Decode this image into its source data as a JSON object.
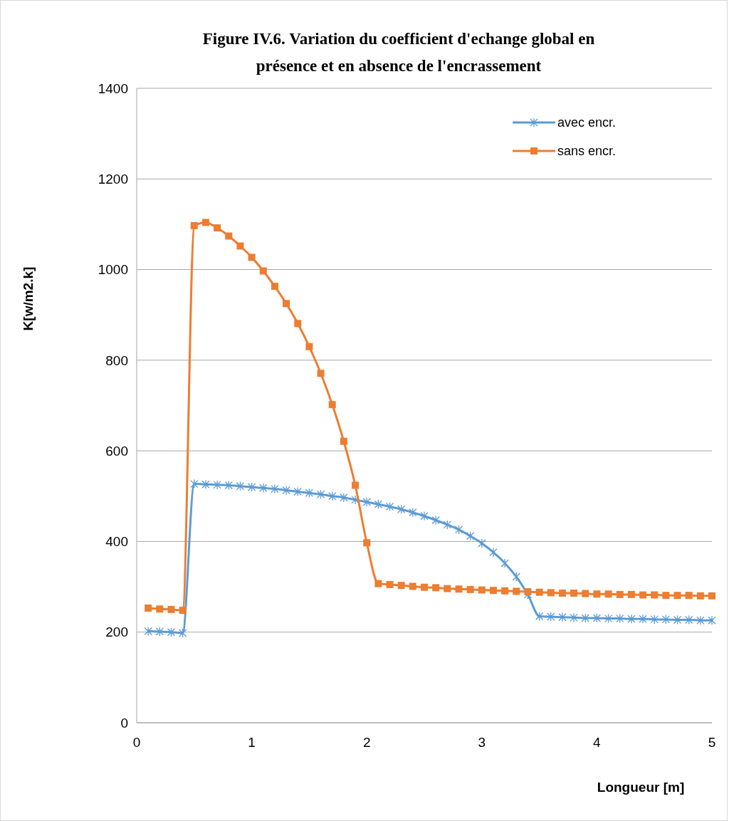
{
  "chart_data": {
    "type": "line",
    "title": "Figure IV.6. Variation du coefficient d'echange global en présence et en absence de l'encrassement",
    "xlabel": "Longueur [m]",
    "ylabel": "K[w/m2.k]",
    "x": [
      0.1,
      0.2,
      0.3,
      0.4,
      0.5,
      0.6,
      0.7,
      0.8,
      0.9,
      1.0,
      1.1,
      1.2,
      1.3,
      1.4,
      1.5,
      1.6,
      1.7,
      1.8,
      1.9,
      2.0,
      2.1,
      2.2,
      2.3,
      2.4,
      2.5,
      2.6,
      2.7,
      2.8,
      2.9,
      3.0,
      3.1,
      3.2,
      3.3,
      3.4,
      3.5,
      3.6,
      3.7,
      3.8,
      3.9,
      4.0,
      4.1,
      4.2,
      4.3,
      4.4,
      4.5,
      4.6,
      4.7,
      4.8,
      4.9,
      5.0
    ],
    "series": [
      {
        "name": "avec encr.",
        "color": "#5b9bd5",
        "marker": "cross",
        "values": [
          202,
          201,
          200,
          198,
          527,
          526,
          525,
          524,
          522,
          520,
          518,
          516,
          513,
          510,
          507,
          504,
          500,
          497,
          492,
          487,
          482,
          477,
          471,
          464,
          456,
          447,
          437,
          426,
          412,
          396,
          376,
          352,
          322,
          283,
          235,
          234,
          233,
          232,
          231,
          231,
          230,
          230,
          229,
          229,
          228,
          228,
          227,
          227,
          226,
          226
        ]
      },
      {
        "name": "sans encr.",
        "color": "#ed7d31",
        "marker": "square",
        "values": [
          253,
          251,
          250,
          248,
          1097,
          1104,
          1092,
          1074,
          1052,
          1027,
          997,
          963,
          925,
          881,
          830,
          771,
          702,
          621,
          524,
          397,
          307,
          305,
          303,
          301,
          299,
          298,
          296,
          295,
          294,
          293,
          292,
          291,
          290,
          289,
          288,
          287,
          286,
          286,
          285,
          284,
          284,
          283,
          283,
          282,
          282,
          281,
          281,
          281,
          280,
          280
        ]
      }
    ],
    "xlim": [
      0,
      5
    ],
    "xticks": [
      0,
      1,
      2,
      3,
      4,
      5
    ],
    "ylim": [
      0,
      1400
    ],
    "yticks": [
      0,
      200,
      400,
      600,
      800,
      1000,
      1200,
      1400
    ],
    "grid": "y",
    "legend": "top right",
    "line_style": "solid"
  }
}
